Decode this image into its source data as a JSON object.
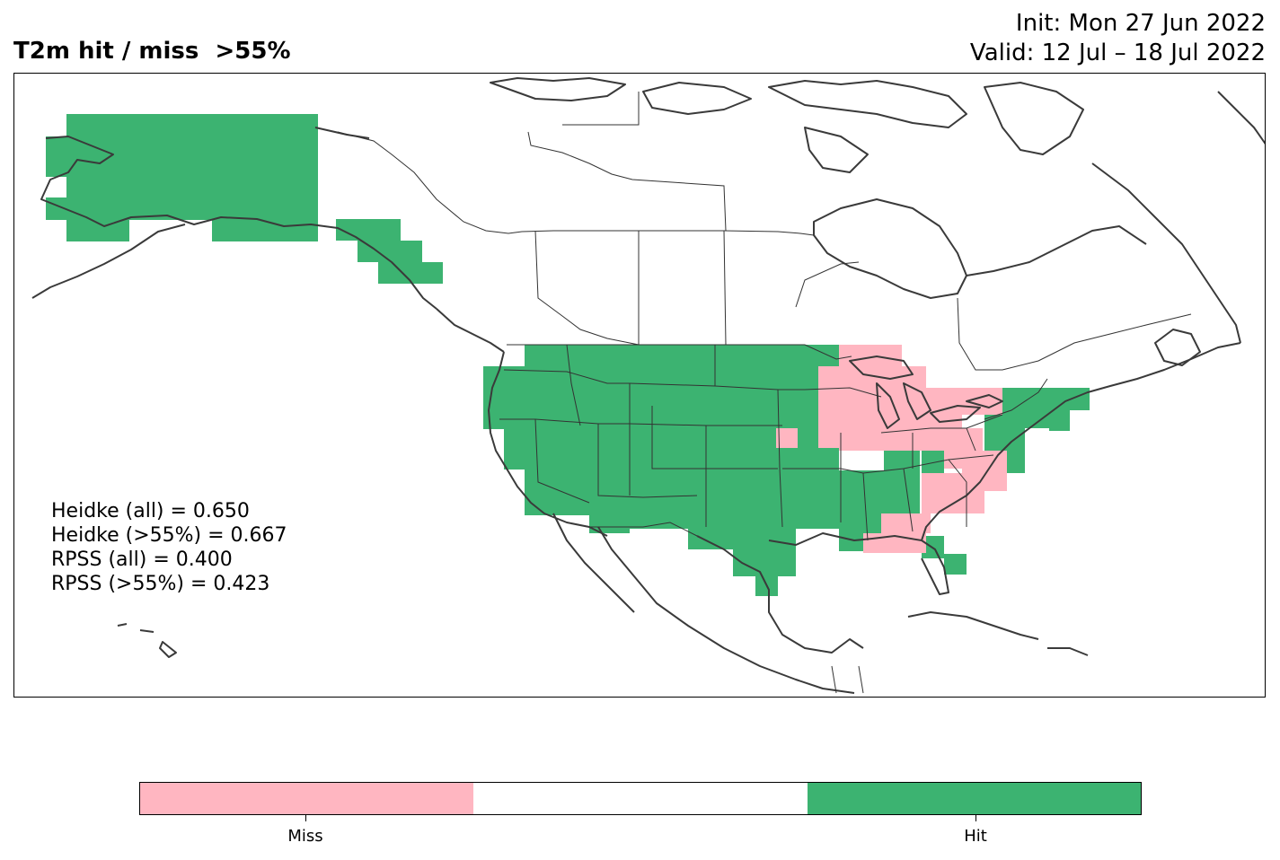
{
  "header": {
    "title": "T2m hit / miss  >55%",
    "init": "Init: Mon 27 Jun 2022",
    "valid": "Valid: 12 Jul – 18 Jul 2022"
  },
  "stats": [
    "Heidke (all) = 0.650",
    "Heidke (>55%) = 0.667",
    "RPSS (all) = 0.400",
    "RPSS (>55%) = 0.423"
  ],
  "colorbar": {
    "colors": [
      "#ffb6c1",
      "#ffffff",
      "#3cb371"
    ],
    "labels": [
      "Miss",
      "Hit"
    ]
  },
  "legend_colors": {
    "hit": "#3cb371",
    "miss": "#ffb6c1",
    "coastline": "#3a3a3a"
  }
}
